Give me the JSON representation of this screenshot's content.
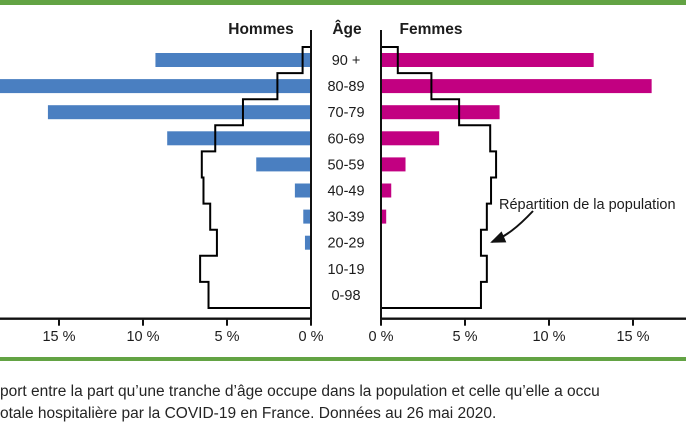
{
  "page": {
    "background": "#ffffff",
    "rule_color": "#63a344",
    "axis_color": "#111111"
  },
  "chart_data": {
    "type": "bar",
    "variant": "population_pyramid_horizontal",
    "header_left": "Hommes",
    "header_center": "Âge",
    "header_right": "Femmes",
    "age_groups": [
      "90 +",
      "80-89",
      "70-79",
      "60-69",
      "50-59",
      "40-49",
      "30-39",
      "20-29",
      "10-19",
      "0-98"
    ],
    "unit": "%",
    "series": [
      {
        "name": "Hommes",
        "side": "left",
        "color": "#4a7fc1",
        "values": [
          9.2,
          18.5,
          15.6,
          8.5,
          3.2,
          0.9,
          0.4,
          0.3,
          0,
          0
        ],
        "clipped_at_plot_edge": [
          false,
          true,
          false,
          false,
          false,
          false,
          false,
          false,
          false,
          false
        ]
      },
      {
        "name": "Femmes",
        "side": "right",
        "color": "#c20081",
        "values": [
          12.6,
          16.05,
          7.0,
          3.4,
          1.4,
          0.55,
          0.25,
          0,
          0,
          0
        ],
        "clipped_at_plot_edge": [
          false,
          false,
          false,
          false,
          false,
          false,
          false,
          false,
          false,
          false
        ]
      }
    ],
    "population_outline": {
      "label": "Répartition de la population",
      "color": "#000000",
      "hommes": [
        0.5,
        2.0,
        4.05,
        5.7,
        6.5,
        6.4,
        6.0,
        5.6,
        6.6,
        6.1
      ],
      "femmes": [
        1.0,
        3.0,
        4.65,
        6.5,
        6.85,
        6.55,
        6.3,
        5.95,
        6.3,
        5.95
      ]
    },
    "x_axis": {
      "tick_values": [
        0,
        5,
        10,
        15
      ],
      "tick_labels_left": [
        "0 %",
        "5 %",
        "10 %",
        "15 %"
      ],
      "tick_labels_right": [
        "0 %",
        "5 %",
        "10 %",
        "15 %"
      ],
      "max_tick_shown": 15
    },
    "legend_position": "none",
    "grid": false
  },
  "caption": {
    "line1": "port entre la part qu’une tranche d’âge occupe dans la population et celle qu’elle a occu",
    "line2": "otale hospitalière par la COVID-19 en France. Données au 26 mai 2020."
  }
}
